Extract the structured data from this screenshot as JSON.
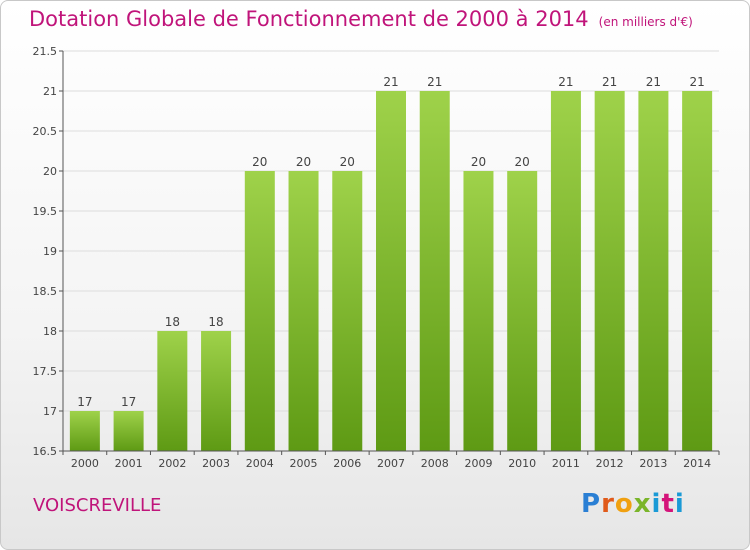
{
  "header": {
    "title": "Dotation Globale de Fonctionnement de 2000 à 2014",
    "subtitle": "(en milliers d'€)"
  },
  "footer": {
    "town": "VOISCREVILLE",
    "logo": "Proxiti"
  },
  "colors": {
    "bar_light": "#9fd24a",
    "bar_dark": "#5e9a14",
    "title": "#c0147a",
    "grid": "#dddddd"
  },
  "chart_data": {
    "type": "bar",
    "categories": [
      "2000",
      "2001",
      "2002",
      "2003",
      "2004",
      "2005",
      "2006",
      "2007",
      "2008",
      "2009",
      "2010",
      "2011",
      "2012",
      "2013",
      "2014"
    ],
    "values": [
      17,
      17,
      18,
      18,
      20,
      20,
      20,
      21,
      21,
      20,
      20,
      21,
      21,
      21,
      21
    ],
    "ylim": [
      16.5,
      21.5
    ],
    "yticks": [
      16.5,
      17,
      17.5,
      18,
      18.5,
      19,
      19.5,
      20,
      20.5,
      21,
      21.5
    ],
    "ytick_labels": [
      "16.5",
      "17",
      "17.5",
      "18",
      "18.5",
      "19",
      "19.5",
      "20",
      "20.5",
      "21",
      "21.5"
    ],
    "grid": true,
    "legend": false
  }
}
